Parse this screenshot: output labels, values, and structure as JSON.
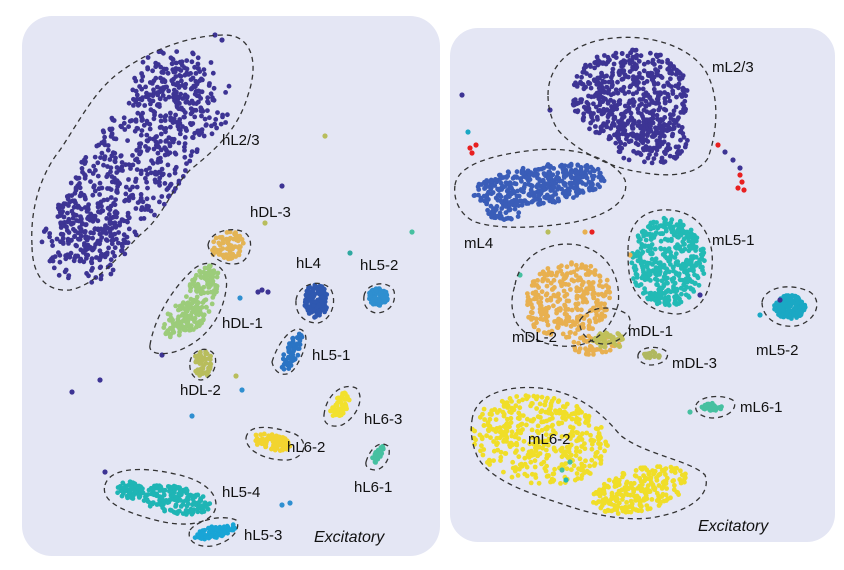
{
  "chart_data": [
    {
      "type": "scatter",
      "title": "",
      "xlabel": "",
      "ylabel": "",
      "grid": false,
      "legend": "none",
      "annotation": "Excitatory",
      "clusters": [
        {
          "label": "hL2/3",
          "color": "#3d3494"
        },
        {
          "label": "hDL-3",
          "color": "#e3b455"
        },
        {
          "label": "hDL-1",
          "color": "#9ccc7a"
        },
        {
          "label": "hDL-2",
          "color": "#b8bd5c"
        },
        {
          "label": "hL4",
          "color": "#2f58b0"
        },
        {
          "label": "hL5-2",
          "color": "#2f8fd0"
        },
        {
          "label": "hL5-1",
          "color": "#2b74c4"
        },
        {
          "label": "hL6-3",
          "color": "#f2e12d"
        },
        {
          "label": "hL6-2",
          "color": "#f2d430"
        },
        {
          "label": "hL6-1",
          "color": "#46c0a0"
        },
        {
          "label": "hL5-4",
          "color": "#1fb5b5"
        },
        {
          "label": "hL5-3",
          "color": "#19a5d6"
        }
      ]
    },
    {
      "type": "scatter",
      "title": "",
      "xlabel": "",
      "ylabel": "",
      "grid": false,
      "legend": "none",
      "annotation": "Excitatory",
      "clusters": [
        {
          "label": "mL2/3",
          "color": "#3d3494"
        },
        {
          "label": "mL4",
          "color": "#3a5db8"
        },
        {
          "label": "mL5-1",
          "color": "#22bab5"
        },
        {
          "label": "mDL-2",
          "color": "#e8b050"
        },
        {
          "label": "mDL-1",
          "color": "#c0c05a"
        },
        {
          "label": "mDL-3",
          "color": "#b0b860"
        },
        {
          "label": "mL5-2",
          "color": "#1aa8c4"
        },
        {
          "label": "mL6-1",
          "color": "#46c0a0"
        },
        {
          "label": "mL6-2",
          "color": "#f0de28"
        }
      ]
    }
  ]
}
